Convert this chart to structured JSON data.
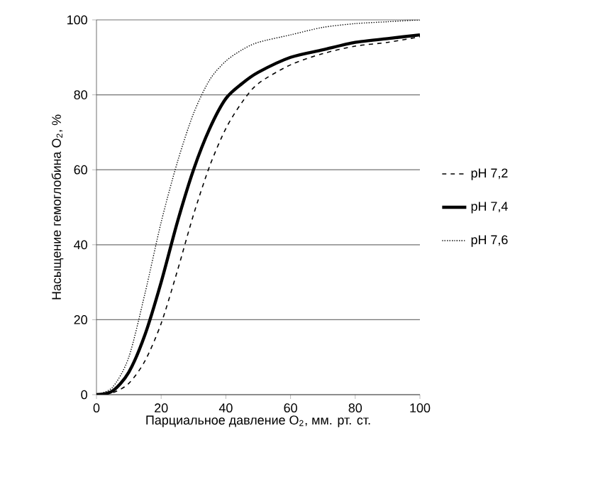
{
  "chart_data": {
    "type": "line",
    "xlabel": "Парциальное давление O$_{2}$, мм. рт. ст.",
    "ylabel": "Насыщение гемоглобина  O$_{2}$, %",
    "x": [
      0,
      5,
      10,
      15,
      20,
      25,
      30,
      35,
      40,
      45,
      50,
      60,
      70,
      80,
      90,
      100
    ],
    "series": [
      {
        "name": "pH 7,2",
        "color": "#000000",
        "line_style": "dashed",
        "values": [
          0,
          0.5,
          3,
          9,
          19,
          33,
          48,
          61,
          71,
          78,
          83,
          88,
          91,
          93,
          94,
          95.5
        ]
      },
      {
        "name": "pH 7,4",
        "color": "#000000",
        "line_style": "solid",
        "values": [
          0,
          1,
          6,
          16,
          30,
          46,
          60,
          71,
          79,
          83,
          86,
          90,
          92,
          94,
          95,
          96
        ]
      },
      {
        "name": "pH 7,6",
        "color": "#000000",
        "line_style": "dotted",
        "values": [
          0,
          2,
          10,
          27,
          46,
          62,
          75,
          84,
          89,
          92,
          94,
          96,
          98,
          99,
          99.5,
          100
        ]
      }
    ],
    "xlim": [
      0,
      100
    ],
    "ylim": [
      0,
      100
    ],
    "xticks": [
      0,
      20,
      40,
      60,
      80,
      100
    ],
    "yticks": [
      0,
      20,
      40,
      60,
      80,
      100
    ],
    "grid": "y",
    "legend": "right",
    "marker": "none"
  }
}
